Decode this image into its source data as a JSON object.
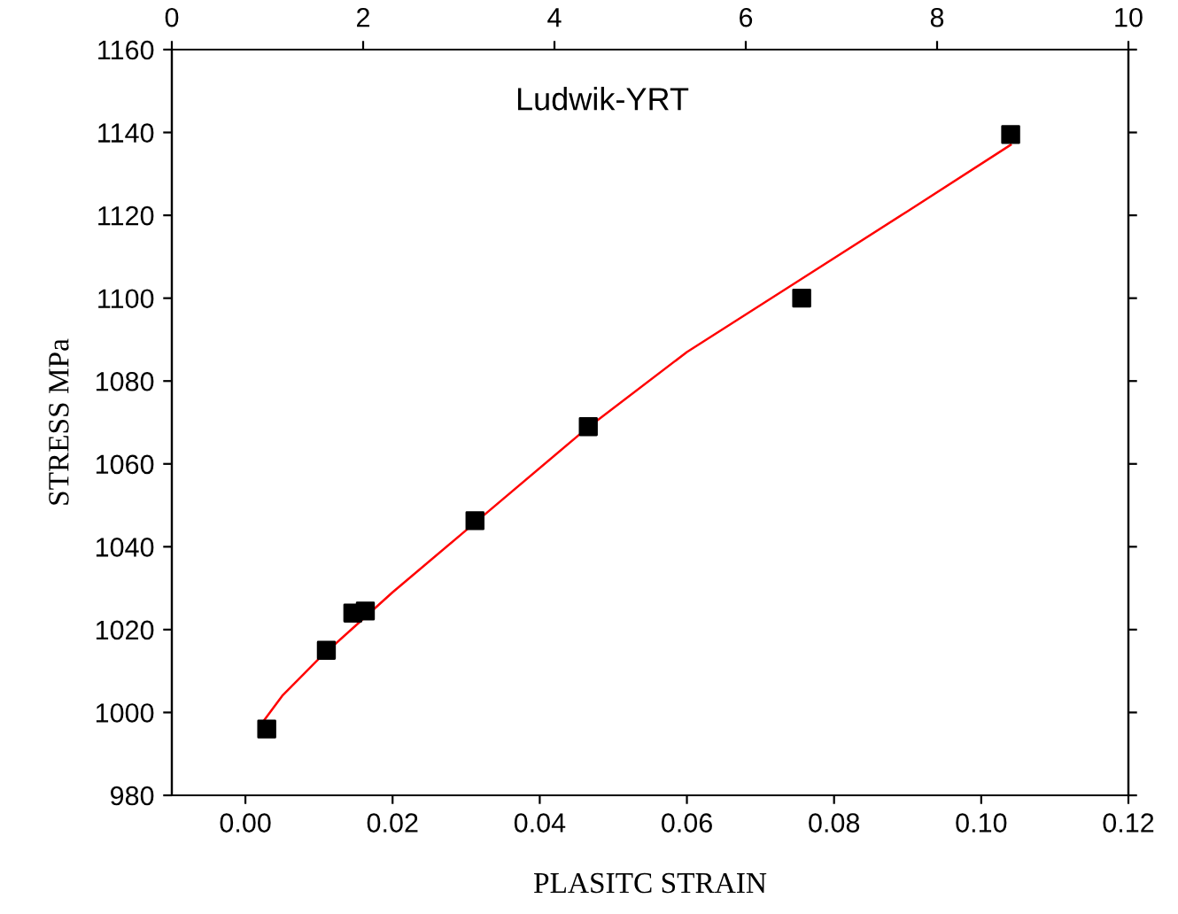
{
  "chart_data": {
    "type": "scatter",
    "xlabel": "PLASITC STRAIN",
    "ylabel": "STRESS MPa",
    "annotations": [
      "Ludwik-YRT"
    ],
    "xlim": [
      -0.01,
      0.12
    ],
    "xticks": [
      {
        "value": 0,
        "label": "0.00"
      },
      {
        "value": 0.02,
        "label": "0.02"
      },
      {
        "value": 0.04,
        "label": "0.04"
      },
      {
        "value": 0.06,
        "label": "0.06"
      },
      {
        "value": 0.08,
        "label": "0.08"
      },
      {
        "value": 0.1,
        "label": "0.10"
      },
      {
        "value": 0.12,
        "label": "0.12"
      }
    ],
    "x2lim": [
      0,
      10
    ],
    "x2ticks": [
      0,
      2,
      4,
      6,
      8,
      10
    ],
    "ylim": [
      980,
      1160
    ],
    "yticks": [
      980,
      1000,
      1020,
      1040,
      1060,
      1080,
      1100,
      1120,
      1140,
      1160
    ],
    "grid": false,
    "legend": false,
    "series": [
      {
        "marker": "square",
        "color": "#000000",
        "x": [
          0.0029,
          0.011,
          0.0146,
          0.0163,
          0.0312,
          0.0466,
          0.0756,
          0.104
        ],
        "values": [
          996,
          1015,
          1024,
          1024.5,
          1046.3,
          1069,
          1100,
          1139.5
        ]
      },
      {
        "type": "line",
        "marker": "none",
        "line_style": "solid",
        "color": "#ff0000",
        "x": [
          0.0025,
          0.005,
          0.01,
          0.015,
          0.02,
          0.03,
          0.046,
          0.06,
          0.075,
          0.09,
          0.104
        ],
        "values": [
          998,
          1004,
          1013,
          1021,
          1029,
          1044,
          1068,
          1087,
          1104,
          1121,
          1137
        ]
      }
    ]
  }
}
